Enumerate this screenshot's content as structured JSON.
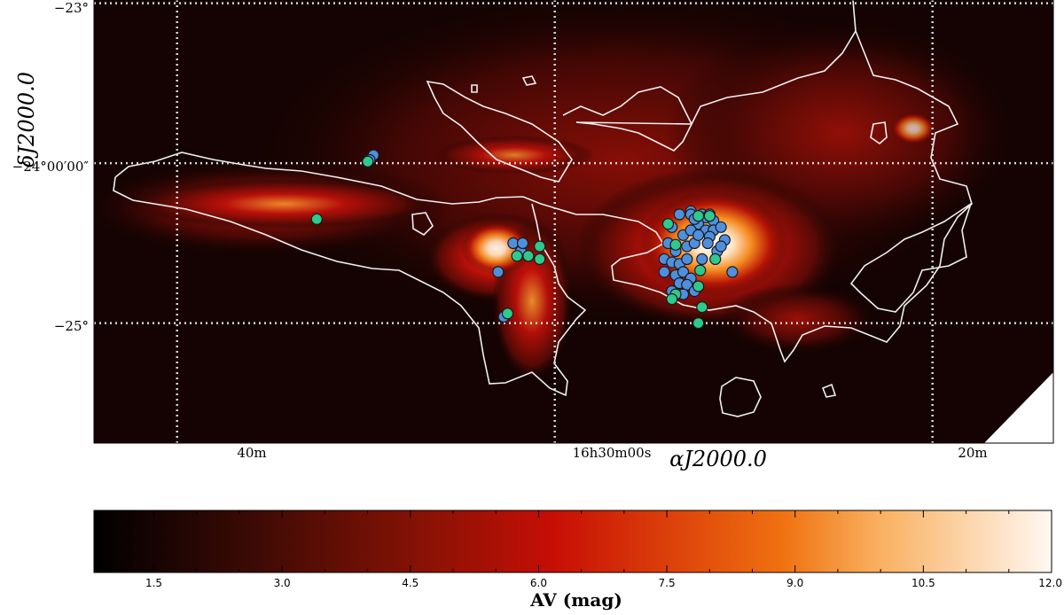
{
  "chart_data": [
    {
      "type": "scatter",
      "image_type": "extinction map",
      "xlabel": "αJ2000.0",
      "ylabel": "δJ2000.0",
      "x_tick_labels": [
        "40m",
        "16h30m00s",
        "20m"
      ],
      "y_tick_labels": [
        "−23°",
        "−24°00′00″",
        "−25°"
      ],
      "x_ticks_minutes": [
        40,
        30,
        20
      ],
      "y_ticks_deg": [
        -23.0,
        -24.0,
        -25.0
      ],
      "xlim_minutes_RA16h": [
        42.2,
        16.8
      ],
      "ylim_deg": [
        -22.98,
        -25.75
      ],
      "grid": true,
      "contour": {
        "color": "#f0f0f0",
        "level_mag": 3
      },
      "series": [
        {
          "color": "#4f8fde",
          "points": [
            [
              34.8,
              -23.95
            ],
            [
              34.9,
              -23.98
            ],
            [
              31.1,
              -24.5
            ],
            [
              30.9,
              -24.55
            ],
            [
              31.5,
              -24.68
            ],
            [
              31.3,
              -24.95
            ],
            [
              31.35,
              -24.96
            ],
            [
              30.85,
              -24.5
            ],
            [
              26.4,
              -24.3
            ],
            [
              26.7,
              -24.32
            ],
            [
              26.1,
              -24.32
            ],
            [
              26.0,
              -24.34
            ],
            [
              25.9,
              -24.32
            ],
            [
              25.8,
              -24.36
            ],
            [
              26.2,
              -24.38
            ],
            [
              26.9,
              -24.4
            ],
            [
              26.6,
              -24.45
            ],
            [
              26.4,
              -24.42
            ],
            [
              26.0,
              -24.42
            ],
            [
              25.8,
              -24.42
            ],
            [
              25.6,
              -24.4
            ],
            [
              27.0,
              -24.5
            ],
            [
              26.8,
              -24.55
            ],
            [
              26.5,
              -24.52
            ],
            [
              26.3,
              -24.5
            ],
            [
              25.5,
              -24.48
            ],
            [
              25.9,
              -24.46
            ],
            [
              27.1,
              -24.6
            ],
            [
              26.9,
              -24.62
            ],
            [
              26.7,
              -24.63
            ],
            [
              26.5,
              -24.6
            ],
            [
              26.1,
              -24.6
            ],
            [
              25.7,
              -24.55
            ],
            [
              25.6,
              -24.52
            ],
            [
              27.1,
              -24.68
            ],
            [
              26.8,
              -24.7
            ],
            [
              26.6,
              -24.68
            ],
            [
              26.4,
              -24.72
            ],
            [
              25.3,
              -24.68
            ],
            [
              26.7,
              -24.75
            ],
            [
              26.5,
              -24.76
            ],
            [
              26.9,
              -24.8
            ],
            [
              26.6,
              -24.82
            ],
            [
              26.3,
              -24.8
            ],
            [
              26.4,
              -24.32
            ],
            [
              26.3,
              -24.35
            ],
            [
              26.2,
              -24.45
            ],
            [
              25.95,
              -24.5
            ]
          ]
        },
        {
          "color": "#2ec98c",
          "points": [
            [
              34.95,
              -23.99
            ],
            [
              36.3,
              -24.35
            ],
            [
              31.0,
              -24.58
            ],
            [
              30.7,
              -24.58
            ],
            [
              30.4,
              -24.6
            ],
            [
              30.4,
              -24.52
            ],
            [
              31.25,
              -24.94
            ],
            [
              27.0,
              -24.38
            ],
            [
              26.8,
              -24.51
            ],
            [
              26.2,
              -24.33
            ],
            [
              25.9,
              -24.33
            ],
            [
              26.15,
              -24.67
            ],
            [
              25.75,
              -24.6
            ],
            [
              26.8,
              -24.82
            ],
            [
              26.2,
              -24.77
            ],
            [
              26.1,
              -24.9
            ],
            [
              26.2,
              -25.0
            ],
            [
              26.9,
              -24.85
            ]
          ]
        }
      ]
    },
    {
      "type": "colorbar",
      "xlabel": "AV (mag)",
      "xlim": [
        0.8,
        12.0
      ],
      "ticks": [
        1.5,
        3.0,
        4.5,
        6.0,
        7.5,
        9.0,
        10.5,
        12.0
      ],
      "tick_labels": [
        "1.5",
        "3.0",
        "4.5",
        "6.0",
        "7.5",
        "9.0",
        "10.5",
        "12.0"
      ],
      "colormap_stops": [
        "#000000",
        "#3a0a05",
        "#8a1205",
        "#c70e05",
        "#f07210",
        "#f9b060",
        "#fff8f2"
      ]
    }
  ]
}
